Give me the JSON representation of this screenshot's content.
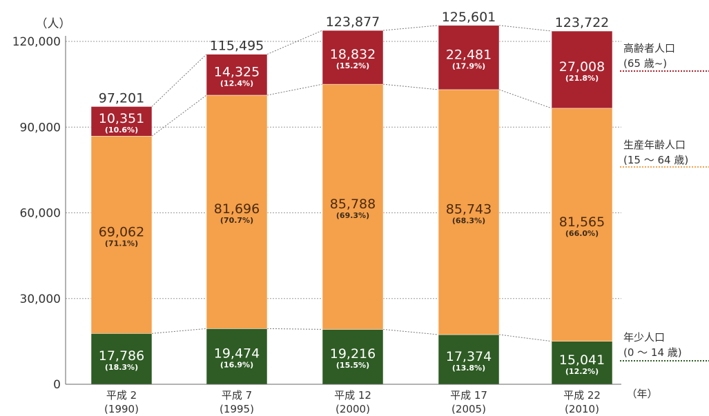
{
  "chart_data": {
    "type": "bar",
    "stacked": true,
    "ylabel": "（人）",
    "xunit": "（年）",
    "ylim": [
      0,
      120000
    ],
    "yticks": [
      "0",
      "30,000",
      "60,000",
      "90,000",
      "120,000"
    ],
    "ytick_values": [
      0,
      30000,
      60000,
      90000,
      120000
    ],
    "categories": [
      {
        "line1": "平成 2",
        "line2": "(1990)"
      },
      {
        "line1": "平成 7",
        "line2": "(1995)"
      },
      {
        "line1": "平成 12",
        "line2": "(2000)"
      },
      {
        "line1": "平成 17",
        "line2": "(2005)"
      },
      {
        "line1": "平成 22",
        "line2": "(2010)"
      }
    ],
    "totals": [
      97201,
      115495,
      123877,
      125601,
      123722
    ],
    "total_labels": [
      "97,201",
      "115,495",
      "123,877",
      "125,601",
      "123,722"
    ],
    "series": [
      {
        "name": "年少人口（0～14歳）",
        "legend_line1": "年少人口",
        "legend_line2": "(0 ～ 14 歳)",
        "color": "#2e5c24",
        "values": [
          17786,
          19474,
          19216,
          17374,
          15041
        ],
        "value_labels": [
          "17,786",
          "19,474",
          "19,216",
          "17,374",
          "15,041"
        ],
        "pct_labels": [
          "(18.3%)",
          "(16.9%)",
          "(15.5%)",
          "(13.8%)",
          "(12.2%)"
        ]
      },
      {
        "name": "生産年齢人口（15～64歳）",
        "legend_line1": "生産年齢人口",
        "legend_line2": "(15 ～ 64 歳)",
        "color": "#f5a04a",
        "values": [
          69062,
          81696,
          85788,
          85743,
          81565
        ],
        "value_labels": [
          "69,062",
          "81,696",
          "85,788",
          "85,743",
          "81,565"
        ],
        "pct_labels": [
          "(71.1%)",
          "(70.7%)",
          "(69.3%)",
          "(68.3%)",
          "(66.0%)"
        ]
      },
      {
        "name": "高齢者人口（65歳～）",
        "legend_line1": "高齢者人口",
        "legend_line2": "(65 歳~)",
        "color": "#a8232e",
        "values": [
          10351,
          14325,
          18832,
          22481,
          27008
        ],
        "value_labels": [
          "10,351",
          "14,325",
          "18,832",
          "22,481",
          "27,008"
        ],
        "pct_labels": [
          "(10.6%)",
          "(12.4%)",
          "(15.2%)",
          "(17.9%)",
          "(21.8%)"
        ]
      }
    ],
    "legend_placement": "right",
    "grid": true
  }
}
